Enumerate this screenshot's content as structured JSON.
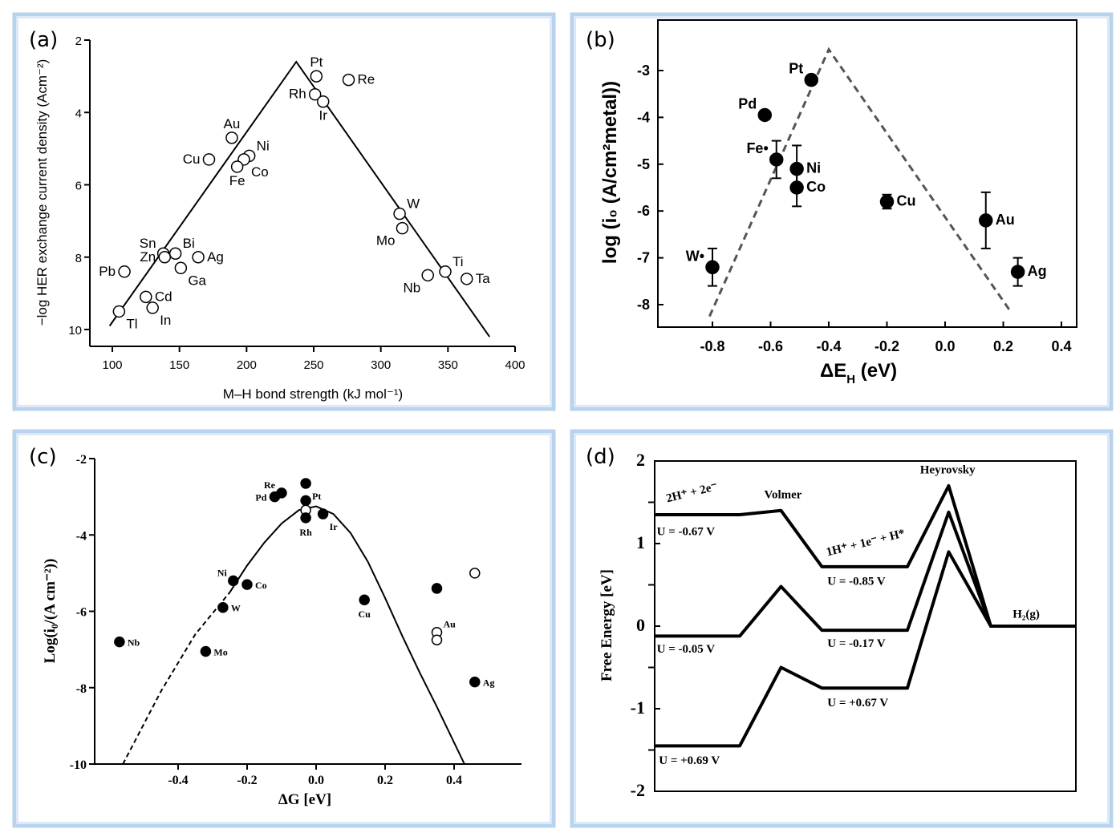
{
  "chart_data": [
    {
      "id": "a",
      "panel_label": "(a)",
      "type": "scatter",
      "xlabel": "M–H bond strength (kJ mol⁻¹)",
      "ylabel": "−log HER exchange current density (Acm⁻²)",
      "xlim": [
        83,
        400
      ],
      "ylim": [
        10.5,
        2
      ],
      "y_inverted": true,
      "xticks": [
        "100",
        "150",
        "200",
        "250",
        "300",
        "350",
        "400"
      ],
      "yticks": [
        "2",
        "4",
        "6",
        "8",
        "10"
      ],
      "lines": [
        {
          "style": "solid",
          "points": [
            [
              98,
              9.9
            ],
            [
              237,
              2.6
            ],
            [
              381,
              10.2
            ]
          ]
        }
      ],
      "points": [
        {
          "label": "Pt",
          "x": 252,
          "y": 3.0,
          "marker": "open",
          "pos": "t"
        },
        {
          "label": "Re",
          "x": 276,
          "y": 3.1,
          "marker": "open",
          "pos": "r"
        },
        {
          "label": "Rh",
          "x": 251,
          "y": 3.5,
          "marker": "open",
          "pos": "l"
        },
        {
          "label": "Ir",
          "x": 257,
          "y": 3.7,
          "marker": "open",
          "pos": "b"
        },
        {
          "label": "Au",
          "x": 189,
          "y": 4.7,
          "marker": "open",
          "pos": "t"
        },
        {
          "label": "Cu",
          "x": 172,
          "y": 5.3,
          "marker": "open",
          "pos": "l"
        },
        {
          "label": "Ni",
          "x": 202,
          "y": 5.2,
          "marker": "open",
          "pos": "tr"
        },
        {
          "label": "Co",
          "x": 198,
          "y": 5.3,
          "marker": "open",
          "pos": "br"
        },
        {
          "label": "Fe",
          "x": 193,
          "y": 5.5,
          "marker": "open",
          "pos": "b"
        },
        {
          "label": "W",
          "x": 314,
          "y": 6.8,
          "marker": "open",
          "pos": "tr"
        },
        {
          "label": "Mo",
          "x": 316,
          "y": 7.2,
          "marker": "open",
          "pos": "bl"
        },
        {
          "label": "Sn",
          "x": 138,
          "y": 7.9,
          "marker": "open",
          "pos": "tl"
        },
        {
          "label": "Bi",
          "x": 147,
          "y": 7.9,
          "marker": "open",
          "pos": "tr"
        },
        {
          "label": "Zn",
          "x": 139,
          "y": 8.0,
          "marker": "open",
          "pos": "l"
        },
        {
          "label": "Ag",
          "x": 164,
          "y": 8.0,
          "marker": "open",
          "pos": "r"
        },
        {
          "label": "Ga",
          "x": 151,
          "y": 8.3,
          "marker": "open",
          "pos": "br"
        },
        {
          "label": "Pb",
          "x": 109,
          "y": 8.4,
          "marker": "open",
          "pos": "l"
        },
        {
          "label": "Cd",
          "x": 125,
          "y": 9.1,
          "marker": "open",
          "pos": "r"
        },
        {
          "label": "In",
          "x": 130,
          "y": 9.4,
          "marker": "open",
          "pos": "br"
        },
        {
          "label": "Tl",
          "x": 105,
          "y": 9.5,
          "marker": "open",
          "pos": "br"
        },
        {
          "label": "Nb",
          "x": 335,
          "y": 8.5,
          "marker": "open",
          "pos": "bl"
        },
        {
          "label": "Ti",
          "x": 348,
          "y": 8.4,
          "marker": "open",
          "pos": "tr"
        },
        {
          "label": "Ta",
          "x": 364,
          "y": 8.6,
          "marker": "open",
          "pos": "r"
        }
      ]
    },
    {
      "id": "b",
      "panel_label": "(b)",
      "type": "scatter",
      "xlabel": "ΔE",
      "xlabel_sub": "H",
      "xlabel_unit": " (eV)",
      "ylabel": "log (i₀ (A/cm²metal))",
      "xlim": [
        -0.99,
        0.45
      ],
      "ylim": [
        -8.48,
        -1.92
      ],
      "xticks": [
        "-0.8",
        "-0.6",
        "-0.4",
        "-0.2",
        "0.0",
        "0.2",
        "0.4"
      ],
      "yticks": [
        "-3",
        "-4",
        "-5",
        "-6",
        "-7",
        "-8"
      ],
      "lines": [
        {
          "style": "dashed",
          "points": [
            [
              -0.81,
              -8.25
            ],
            [
              -0.4,
              -2.55
            ],
            [
              0.22,
              -8.1
            ]
          ]
        }
      ],
      "points": [
        {
          "label": "W•",
          "x": -0.8,
          "y": -7.2,
          "err": 0.4,
          "marker": "filled",
          "pos": "tl"
        },
        {
          "label": "Pd",
          "x": -0.62,
          "y": -3.95,
          "err": 0,
          "marker": "filled",
          "pos": "tl"
        },
        {
          "label": "Pt",
          "x": -0.46,
          "y": -3.2,
          "err": 0,
          "marker": "filled",
          "pos": "tl"
        },
        {
          "label": "Fe•",
          "x": -0.58,
          "y": -4.9,
          "err": 0.4,
          "marker": "filled",
          "pos": "tl"
        },
        {
          "label": "Ni",
          "x": -0.51,
          "y": -5.1,
          "err": 0.5,
          "marker": "filled",
          "pos": "r"
        },
        {
          "label": "Co",
          "x": -0.51,
          "y": -5.5,
          "err": 0.4,
          "marker": "filled",
          "pos": "r"
        },
        {
          "label": "Cu",
          "x": -0.2,
          "y": -5.8,
          "err": 0.15,
          "marker": "filled",
          "pos": "r"
        },
        {
          "label": "Au",
          "x": 0.14,
          "y": -6.2,
          "err": 0.6,
          "marker": "filled",
          "pos": "r"
        },
        {
          "label": "Ag",
          "x": 0.25,
          "y": -7.3,
          "err": 0.3,
          "marker": "filled",
          "pos": "r"
        }
      ]
    },
    {
      "id": "c",
      "panel_label": "(c)",
      "type": "scatter",
      "xlabel": "ΔG [eV]",
      "ylabel": "Log(i₀/(A cm⁻²))",
      "xlim": [
        -0.64,
        0.595
      ],
      "ylim": [
        -10,
        -2
      ],
      "xticks": [
        "-0.4",
        "-0.2",
        "0.0",
        "0.2",
        "0.4"
      ],
      "yticks": [
        "-2",
        "-4",
        "-6",
        "-8",
        "-10"
      ],
      "lines": [
        {
          "style": "dashed",
          "points": [
            [
              -0.56,
              -10
            ],
            [
              -0.45,
              -8.1
            ],
            [
              -0.35,
              -6.6
            ],
            [
              -0.25,
              -5.5
            ]
          ]
        },
        {
          "style": "solid",
          "points": [
            [
              -0.25,
              -5.5
            ],
            [
              -0.2,
              -4.8
            ],
            [
              -0.15,
              -4.2
            ],
            [
              -0.1,
              -3.7
            ],
            [
              -0.05,
              -3.35
            ],
            [
              0,
              -3.25
            ],
            [
              0.05,
              -3.45
            ],
            [
              0.1,
              -3.95
            ],
            [
              0.15,
              -4.7
            ],
            [
              0.2,
              -5.65
            ],
            [
              0.25,
              -6.65
            ],
            [
              0.3,
              -7.6
            ],
            [
              0.35,
              -8.5
            ],
            [
              0.43,
              -10
            ]
          ]
        }
      ],
      "points": [
        {
          "label": "Nb",
          "x": -0.57,
          "y": -6.8,
          "marker": "filled",
          "pos": "r"
        },
        {
          "label": "Mo",
          "x": -0.32,
          "y": -7.05,
          "marker": "filled",
          "pos": "r"
        },
        {
          "label": "W",
          "x": -0.27,
          "y": -5.9,
          "marker": "filled",
          "pos": "r"
        },
        {
          "label": "Ni",
          "x": -0.24,
          "y": -5.2,
          "marker": "filled",
          "pos": "tl"
        },
        {
          "label": "Co",
          "x": -0.2,
          "y": -5.3,
          "marker": "filled",
          "pos": "r"
        },
        {
          "label": "Re",
          "x": -0.1,
          "y": -2.9,
          "marker": "filled",
          "pos": "tl"
        },
        {
          "label": "Pd",
          "x": -0.12,
          "y": -3.0,
          "marker": "filled",
          "pos": "l"
        },
        {
          "label": "Pt",
          "x": -0.03,
          "y": -2.65,
          "marker": "filled",
          "pos": "br"
        },
        {
          "label": "",
          "x": -0.03,
          "y": -3.1,
          "marker": "filled",
          "pos": "r"
        },
        {
          "label": "",
          "x": -0.03,
          "y": -3.35,
          "marker": "open",
          "pos": "r"
        },
        {
          "label": "Rh",
          "x": -0.03,
          "y": -3.55,
          "marker": "filled",
          "pos": "b"
        },
        {
          "label": "Ir",
          "x": 0.02,
          "y": -3.45,
          "marker": "filled",
          "pos": "br"
        },
        {
          "label": "Cu",
          "x": 0.14,
          "y": -5.7,
          "marker": "filled",
          "pos": "b"
        },
        {
          "label": "",
          "x": 0.35,
          "y": -5.4,
          "marker": "filled",
          "pos": "r"
        },
        {
          "label": "Au",
          "x": 0.35,
          "y": -6.55,
          "marker": "open",
          "pos": "tr"
        },
        {
          "label": "",
          "x": 0.35,
          "y": -6.75,
          "marker": "open",
          "pos": "r"
        },
        {
          "label": "",
          "x": 0.46,
          "y": -5.0,
          "marker": "open",
          "pos": "r"
        },
        {
          "label": "Ag",
          "x": 0.46,
          "y": -7.85,
          "marker": "filled",
          "pos": "r"
        }
      ]
    },
    {
      "id": "d",
      "panel_label": "(d)",
      "type": "line",
      "xlabel": "",
      "ylabel": "Free Energy [eV]",
      "xlim": [
        0,
        10
      ],
      "ylim": [
        -2,
        2
      ],
      "xticks": [],
      "yticks": [
        "2",
        "1",
        "0",
        "-1",
        "-2"
      ],
      "series": [
        {
          "name": "U = -0.67 V",
          "x": [
            0,
            2.02,
            3.0,
            3.97,
            6.0,
            6.98,
            7.98,
            10
          ],
          "y": [
            1.35,
            1.35,
            1.4,
            0.72,
            0.72,
            1.7,
            0,
            0
          ]
        },
        {
          "name": "U = -0.05 V",
          "x": [
            0,
            2.02,
            3.0,
            3.97,
            6.0,
            6.98,
            7.98,
            10
          ],
          "y": [
            -0.12,
            -0.12,
            0.48,
            -0.05,
            -0.05,
            1.38,
            0,
            0
          ]
        },
        {
          "name": "U = +0.69 V",
          "x": [
            0,
            2.02,
            3.0,
            3.97,
            6.0,
            6.98,
            7.98,
            10
          ],
          "y": [
            -1.45,
            -1.45,
            -0.5,
            -0.75,
            -0.75,
            0.9,
            0,
            0
          ]
        }
      ],
      "annotations": [
        {
          "text": "2H⁺ + 2e⁻",
          "x": 0.3,
          "y": 1.5,
          "rotate": -14
        },
        {
          "text": "Volmer",
          "x": 2.6,
          "y": 1.55,
          "rotate": 0
        },
        {
          "text": "Heyrovsky",
          "x": 6.3,
          "y": 1.85,
          "rotate": 0
        },
        {
          "text": "1H⁺ + 1e⁻ + H*",
          "x": 4.1,
          "y": 0.85,
          "rotate": -14
        },
        {
          "text": "H₂(g)",
          "x": 8.5,
          "y": 0.1,
          "rotate": 0
        },
        {
          "text": "U = -0.67 V",
          "x": 0.05,
          "y": 1.1,
          "rotate": 0
        },
        {
          "text": "U = -0.85 V",
          "x": 4.1,
          "y": 0.5,
          "rotate": 0
        },
        {
          "text": "U = -0.05 V",
          "x": 0.05,
          "y": -0.32,
          "rotate": 0
        },
        {
          "text": "U = -0.17 V",
          "x": 4.1,
          "y": -0.25,
          "rotate": 0
        },
        {
          "text": "U = +0.67 V",
          "x": 4.1,
          "y": -0.97,
          "rotate": 0
        },
        {
          "text": "U = +0.69 V",
          "x": 0.1,
          "y": -1.67,
          "rotate": 0
        }
      ]
    }
  ]
}
